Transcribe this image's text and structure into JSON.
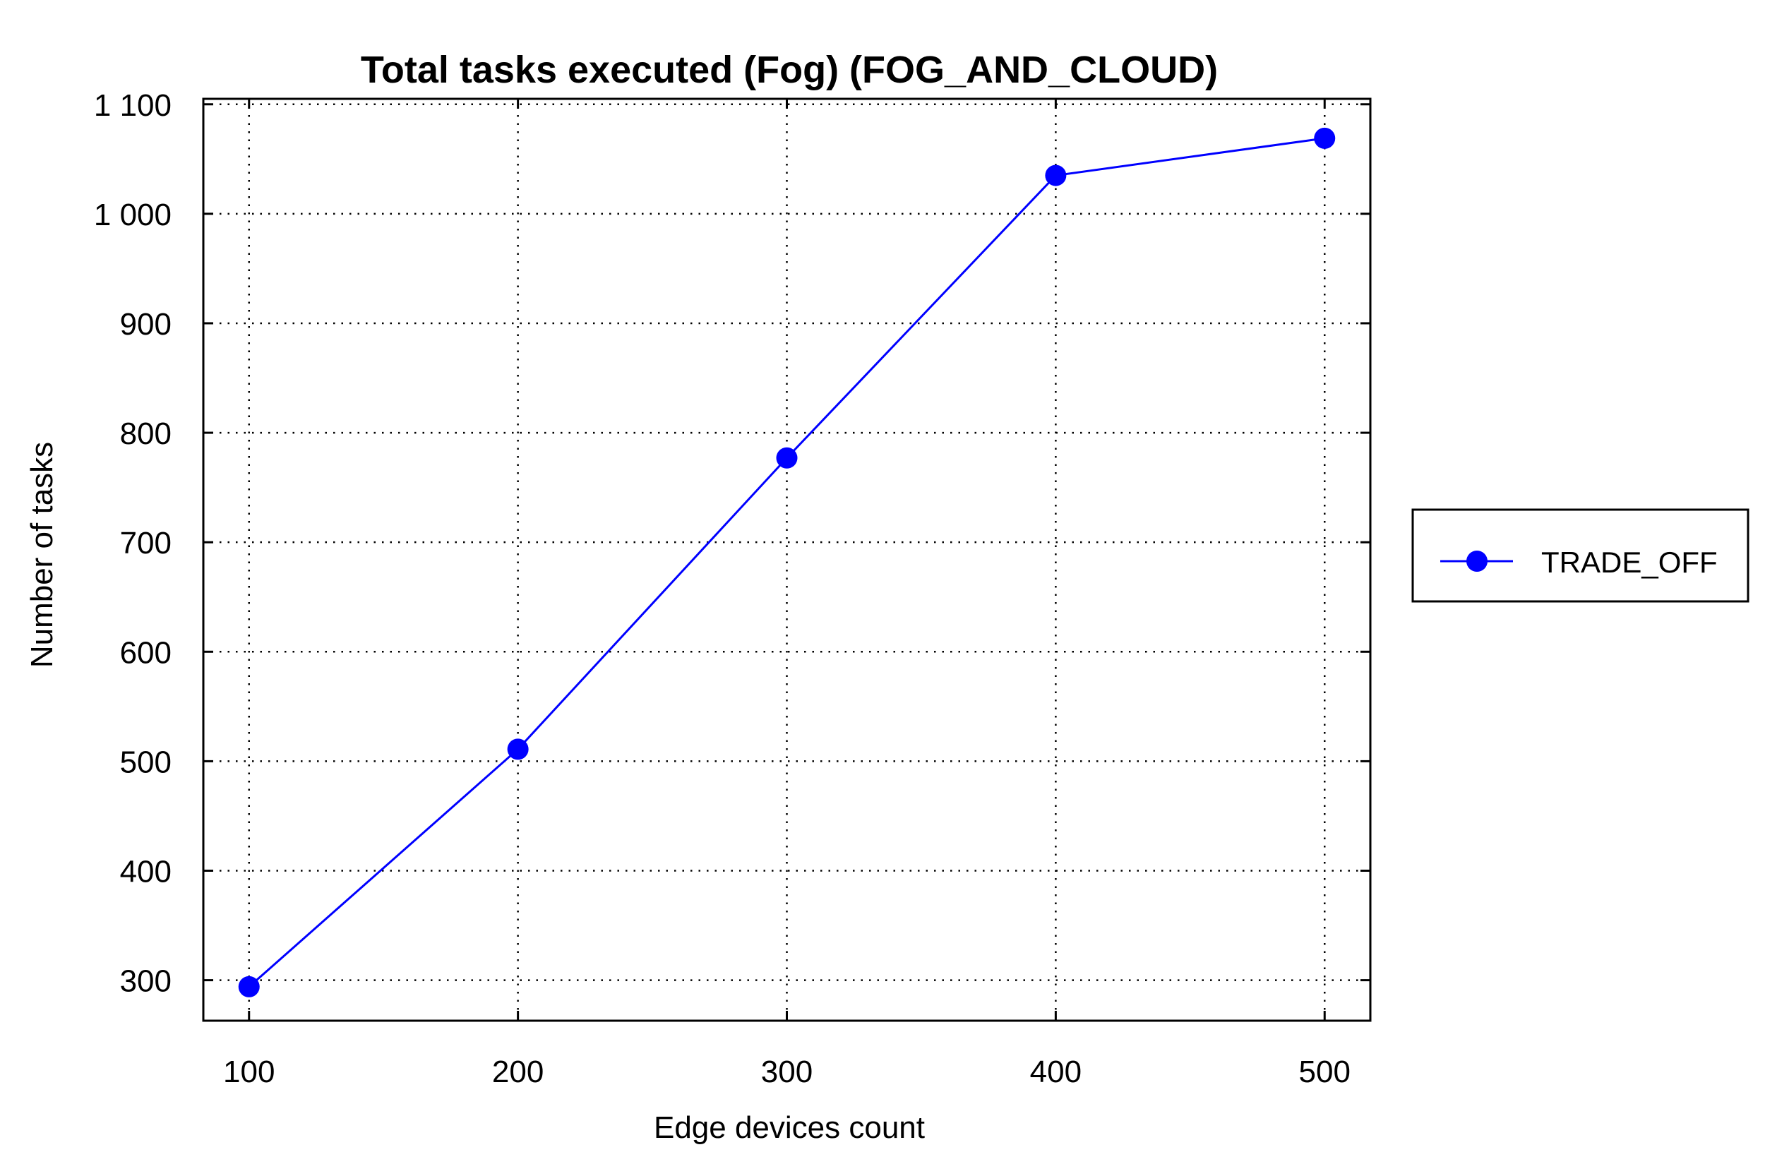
{
  "chart_data": {
    "type": "line",
    "title": "Total tasks executed (Fog) (FOG_AND_CLOUD)",
    "xlabel": "Edge devices count",
    "ylabel": "Number of tasks",
    "x": [
      100,
      200,
      300,
      400,
      500
    ],
    "series": [
      {
        "name": "TRADE_OFF",
        "values": [
          294,
          511,
          777,
          1035,
          1069
        ],
        "color": "#0000ff",
        "marker": "circle"
      }
    ],
    "xlim": [
      83,
      517
    ],
    "ylim": [
      263,
      1105
    ],
    "xticks": [
      100,
      200,
      300,
      400,
      500
    ],
    "xtick_labels": [
      "100",
      "200",
      "300",
      "400",
      "500"
    ],
    "yticks": [
      300,
      400,
      500,
      600,
      700,
      800,
      900,
      1000,
      1100
    ],
    "ytick_labels": [
      "300",
      "400",
      "500",
      "600",
      "700",
      "800",
      "900",
      "1 000",
      "1 100"
    ],
    "grid": true,
    "grid_style": "dotted",
    "legend_position": "right"
  }
}
